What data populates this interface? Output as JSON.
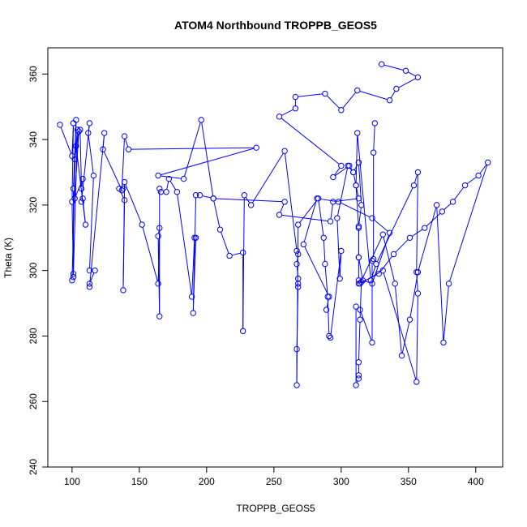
{
  "chart_data": {
    "type": "line",
    "title": "ATOM4 Northbound TROPPB_GEOS5",
    "xlabel": "TROPPB_GEOS5",
    "ylabel": "Theta (K)",
    "xlim": [
      82,
      420
    ],
    "ylim": [
      240,
      368
    ],
    "xticks": [
      100,
      150,
      200,
      250,
      300,
      350,
      400
    ],
    "yticks": [
      240,
      260,
      280,
      300,
      320,
      340,
      360
    ],
    "grid": false,
    "legend": "none",
    "series_color": "#0000ff",
    "series": [
      {
        "marker": "open-circle",
        "points": [
          [
            91,
            344.5
          ],
          [
            100,
            335
          ],
          [
            101,
            345
          ],
          [
            100,
            321
          ],
          [
            101,
            298
          ],
          [
            100,
            297
          ],
          [
            103,
            346
          ],
          [
            101,
            325
          ],
          [
            101,
            299
          ],
          [
            104,
            343
          ],
          [
            102,
            334
          ],
          [
            105,
            342.5
          ],
          [
            102,
            322
          ],
          [
            108,
            328
          ],
          [
            107,
            325
          ],
          [
            106,
            343
          ],
          [
            103,
            338
          ],
          [
            110,
            314
          ],
          [
            108,
            322
          ],
          [
            107,
            321
          ],
          [
            113,
            345
          ],
          [
            112,
            342
          ],
          [
            116,
            329
          ],
          [
            113,
            300
          ],
          [
            117,
            300
          ],
          [
            113,
            296
          ],
          [
            113,
            295
          ],
          [
            124,
            342
          ],
          [
            123,
            337
          ],
          [
            137,
            324.5
          ],
          [
            139,
            341
          ],
          [
            142,
            337
          ],
          [
            237,
            337.5
          ],
          [
            164,
            329
          ],
          [
            183,
            328
          ],
          [
            196,
            346
          ],
          [
            205,
            322
          ],
          [
            258,
            321
          ],
          [
            254,
            317
          ],
          [
            292,
            315
          ],
          [
            294,
            321
          ],
          [
            313,
            322
          ],
          [
            311,
            326
          ],
          [
            312,
            342
          ],
          [
            322,
            297
          ],
          [
            326,
            302
          ],
          [
            354,
            326
          ],
          [
            357,
            330
          ],
          [
            356,
            299.5
          ],
          [
            357,
            293
          ],
          [
            356,
            266
          ],
          [
            331,
            300
          ],
          [
            314,
            296
          ],
          [
            331,
            311
          ],
          [
            340,
            296
          ],
          [
            345,
            274
          ],
          [
            351,
            285
          ],
          [
            357,
            299.5
          ],
          [
            371,
            320
          ],
          [
            376,
            278
          ],
          [
            380,
            296
          ],
          [
            409,
            333
          ],
          [
            402,
            329
          ],
          [
            392,
            326
          ],
          [
            383,
            321
          ],
          [
            375,
            318
          ],
          [
            362,
            313
          ],
          [
            351,
            310
          ],
          [
            339,
            305
          ],
          [
            328,
            299
          ],
          [
            313,
            296
          ]
        ]
      },
      {
        "marker": "open-circle",
        "points": [
          [
            138,
            325
          ],
          [
            135,
            325
          ],
          [
            139,
            321.5
          ],
          [
            138,
            294
          ],
          [
            139,
            327
          ],
          [
            152,
            314
          ],
          [
            164,
            296
          ],
          [
            165,
            313
          ],
          [
            164,
            310.5
          ],
          [
            165,
            286
          ],
          [
            165,
            325
          ],
          [
            166,
            324
          ],
          [
            170,
            324
          ],
          [
            172,
            328
          ],
          [
            178,
            324
          ],
          [
            189,
            292
          ],
          [
            191,
            310
          ],
          [
            192,
            310
          ],
          [
            190,
            287
          ],
          [
            192,
            323
          ],
          [
            195,
            323
          ],
          [
            205,
            322
          ],
          [
            210,
            312.5
          ],
          [
            217,
            304.5
          ],
          [
            227,
            305.5
          ],
          [
            227,
            281.5
          ],
          [
            228,
            323
          ],
          [
            233,
            320
          ],
          [
            258,
            336.5
          ],
          [
            267,
            306
          ],
          [
            268,
            305
          ],
          [
            267,
            302
          ],
          [
            268,
            297.5
          ],
          [
            268,
            296
          ],
          [
            268,
            295
          ],
          [
            267,
            276
          ],
          [
            267,
            265
          ],
          [
            268,
            314
          ],
          [
            283,
            322
          ],
          [
            287,
            310
          ],
          [
            288,
            302
          ],
          [
            290,
            292
          ],
          [
            291,
            280
          ],
          [
            292,
            279.5
          ],
          [
            300,
            306
          ],
          [
            299,
            297.5
          ],
          [
            297,
            316
          ],
          [
            305,
            332
          ],
          [
            309,
            330
          ],
          [
            313,
            333
          ],
          [
            315,
            320
          ],
          [
            313,
            313.5
          ],
          [
            313,
            304
          ],
          [
            313,
            297
          ],
          [
            315,
            296.5
          ],
          [
            314,
            285
          ],
          [
            313,
            272
          ],
          [
            313,
            268
          ],
          [
            313,
            267
          ],
          [
            311,
            265
          ],
          [
            311,
            289
          ],
          [
            314,
            288
          ],
          [
            323,
            278
          ],
          [
            323,
            303
          ],
          [
            324,
            303.5
          ],
          [
            324,
            336
          ],
          [
            325,
            345
          ]
        ]
      },
      {
        "marker": "open-circle",
        "points": [
          [
            330,
            363
          ],
          [
            348,
            361
          ],
          [
            357,
            359
          ],
          [
            341,
            355.5
          ],
          [
            336,
            352
          ],
          [
            312,
            355
          ],
          [
            300,
            349
          ],
          [
            288,
            354
          ],
          [
            266,
            353
          ],
          [
            266,
            349.5
          ],
          [
            254,
            347
          ],
          [
            300,
            332
          ],
          [
            294,
            328.5
          ],
          [
            306,
            332
          ],
          [
            309,
            330
          ],
          [
            311,
            326
          ],
          [
            313,
            313
          ],
          [
            313,
            304
          ],
          [
            316,
            297
          ],
          [
            323,
            296
          ],
          [
            336,
            311.5
          ],
          [
            323,
            316
          ],
          [
            298,
            321
          ],
          [
            282,
            322
          ],
          [
            272,
            308
          ],
          [
            291,
            292
          ],
          [
            289,
            288
          ]
        ]
      }
    ]
  }
}
